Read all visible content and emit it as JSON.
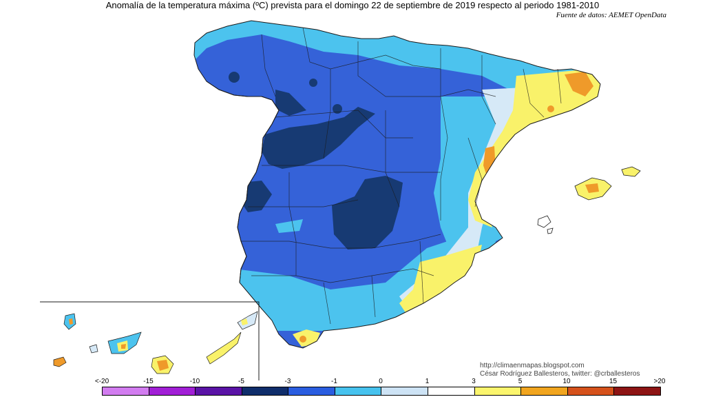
{
  "title": "Anomalía de la temperatura máxima (ºC) prevista para el domingo 22 de septiembre de 2019 respecto al periodo 1981-2010",
  "source": "Fuente de datos: AEMET OpenData",
  "credits": {
    "url": "http://climaenmapas.blogspot.com",
    "author": "César Rodríguez Ballesteros, twitter: @crballesteros"
  },
  "legend": {
    "labels": [
      "<-20",
      "-15",
      "-10",
      "-5",
      "-3",
      "-1",
      "0",
      "1",
      "3",
      "5",
      "10",
      "15",
      ">20"
    ],
    "colors": [
      "#d27cf0",
      "#a11fd6",
      "#5a13a6",
      "#0f2d6b",
      "#2a5de0",
      "#46c2ee",
      "#cde3f5",
      "#ffffff",
      "#fbf56d",
      "#f1a51f",
      "#d5511b",
      "#8d1414",
      "#6b3a0c"
    ]
  },
  "map_colors": {
    "ocean": "#ffffff",
    "border": "#1a1a1a",
    "dark_navy": "#173a73",
    "royal_blue": "#3562d8",
    "light_blue": "#4cc3ee",
    "pale_blue": "#d6e9f7",
    "yellow": "#f9f26a",
    "orange": "#ef9a2a"
  }
}
